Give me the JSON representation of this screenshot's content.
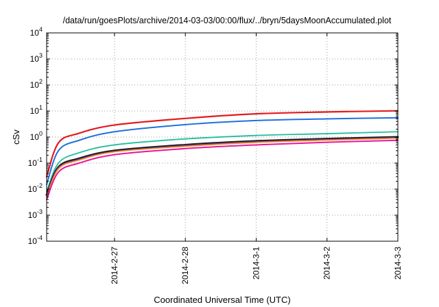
{
  "chart_data": {
    "type": "line",
    "title": "/data/run/goesPlots/archive/2014-03-03/00:00/flux/../bryn/5daysMoonAccumulated.plot",
    "xlabel": "Coordinated Universal Time (UTC)",
    "ylabel": "cSv",
    "yscale": "log",
    "ylim": [
      0.0001,
      10000
    ],
    "xlim": [
      "2014-02-26 01:00",
      "2014-03-03 00:00"
    ],
    "x_tick_labels": [
      "2014-2-27",
      "2014-2-28",
      "2014-3-1",
      "2014-3-2",
      "2014-3-3"
    ],
    "x_ticks": [
      "2014-02-27",
      "2014-02-28",
      "2014-03-01",
      "2014-03-02",
      "2014-03-03"
    ],
    "y_ticks": [
      {
        "base": "10",
        "exp": "-4",
        "value": 0.0001
      },
      {
        "base": "10",
        "exp": "-3",
        "value": 0.001
      },
      {
        "base": "10",
        "exp": "-2",
        "value": 0.01
      },
      {
        "base": "10",
        "exp": "-1",
        "value": 0.1
      },
      {
        "base": "10",
        "exp": "0",
        "value": 1
      },
      {
        "base": "10",
        "exp": "1",
        "value": 10
      },
      {
        "base": "10",
        "exp": "2",
        "value": 100
      },
      {
        "base": "10",
        "exp": "3",
        "value": 1000
      },
      {
        "base": "10",
        "exp": "4",
        "value": 10000
      }
    ],
    "grid": true,
    "x": [
      "2014-02-26 01:00",
      "2014-02-26 05:00",
      "2014-02-26 12:00",
      "2014-02-27 00:00",
      "2014-02-28 00:00",
      "2014-03-01 00:00",
      "2014-03-02 00:00",
      "2014-03-03 00:00"
    ],
    "series": [
      {
        "color": "#e41a1c",
        "width": 2.2,
        "values": [
          0.03,
          0.6,
          1.4,
          2.9,
          5.2,
          7.8,
          9.2,
          10.2
        ]
      },
      {
        "color": "#1f6fe0",
        "width": 2.0,
        "values": [
          0.015,
          0.3,
          0.75,
          1.6,
          3.0,
          4.3,
          5.0,
          5.5
        ]
      },
      {
        "color": "#1fbf9a",
        "width": 1.8,
        "values": [
          0.008,
          0.1,
          0.25,
          0.5,
          0.85,
          1.15,
          1.35,
          1.6
        ]
      },
      {
        "color": "#1a1a1a",
        "width": 3.0,
        "values": [
          0.006,
          0.07,
          0.15,
          0.3,
          0.5,
          0.7,
          0.85,
          1.0
        ]
      },
      {
        "color": "#6a3d9a",
        "width": 1.8,
        "values": [
          0.006,
          0.065,
          0.14,
          0.28,
          0.47,
          0.66,
          0.8,
          0.95
        ]
      },
      {
        "color": "#ff8c1a",
        "width": 1.6,
        "values": [
          0.005,
          0.06,
          0.13,
          0.27,
          0.44,
          0.62,
          0.76,
          0.9
        ]
      },
      {
        "color": "#e6189a",
        "width": 2.0,
        "values": [
          0.004,
          0.045,
          0.1,
          0.21,
          0.36,
          0.5,
          0.63,
          0.75
        ]
      }
    ]
  }
}
